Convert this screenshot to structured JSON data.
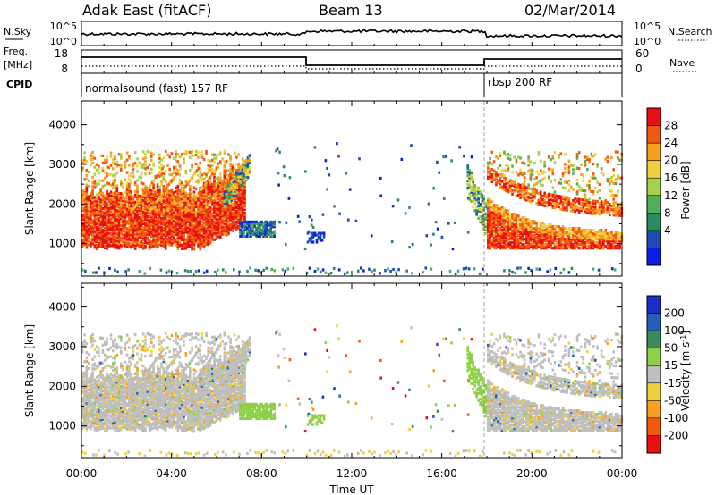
{
  "header": {
    "radar": "Adak East (fitACF)",
    "beam": "Beam 13",
    "date": "02/Mar/2014"
  },
  "noise_panel": {
    "left_label": "N.Sky",
    "left_ticks": [
      "10^5",
      "10^0"
    ],
    "right_label": "N.Search",
    "right_ticks": [
      "10^5",
      "10^0"
    ]
  },
  "freq_panel": {
    "left_label_1": "Freq.",
    "left_label_2": "[MHz]",
    "left_ticks": [
      "18",
      "8"
    ],
    "right_label": "Nave",
    "right_ticks": [
      "60",
      "0"
    ],
    "cpid_label": "CPID",
    "cpid_1": "normalsound (fast) 157 RF",
    "cpid_2": "rbsp 200 RF"
  },
  "colors": {
    "power": [
      "#0a1ee6",
      "#1e4bb4",
      "#2a8a62",
      "#4fae5a",
      "#a6d24a",
      "#f0d040",
      "#f7a020",
      "#f25810",
      "#e81010"
    ],
    "velocity": [
      "#e81010",
      "#f25810",
      "#f7a020",
      "#f0d040",
      "#bfbfbf",
      "#8ed048",
      "#3a8a5a",
      "#2460b8",
      "#1830c8"
    ]
  },
  "chart_data": [
    {
      "type": "heatmap",
      "name": "power",
      "xlabel": "",
      "ylabel": "Slant Range [km]",
      "x_ticks": [
        "00:00",
        "04:00",
        "08:00",
        "12:00",
        "16:00",
        "20:00",
        "00:00"
      ],
      "xlim_hours": [
        0,
        24
      ],
      "y_ticks": [
        "1000",
        "2000",
        "3000",
        "4000"
      ],
      "ylim_km": [
        180,
        4600
      ],
      "colorbar_label": "Power [dB]",
      "colorbar_ticks": [
        "28",
        "24",
        "20",
        "16",
        "12",
        "8",
        "4"
      ],
      "clim": [
        0,
        30
      ]
    },
    {
      "type": "heatmap",
      "name": "velocity",
      "xlabel": "Time UT",
      "ylabel": "Slant Range [km]",
      "x_ticks": [
        "00:00",
        "04:00",
        "08:00",
        "12:00",
        "16:00",
        "20:00",
        "00:00"
      ],
      "xlim_hours": [
        0,
        24
      ],
      "y_ticks": [
        "1000",
        "2000",
        "3000",
        "4000"
      ],
      "ylim_km": [
        180,
        4600
      ],
      "colorbar_label": "Velocity [m s",
      "colorbar_label_sup": "-1",
      "colorbar_label_end": "]",
      "colorbar_ticks": [
        "200",
        "100",
        "50",
        "15",
        "-15",
        "-50",
        "-100",
        "-200"
      ],
      "clim": [
        -250,
        250
      ]
    }
  ]
}
